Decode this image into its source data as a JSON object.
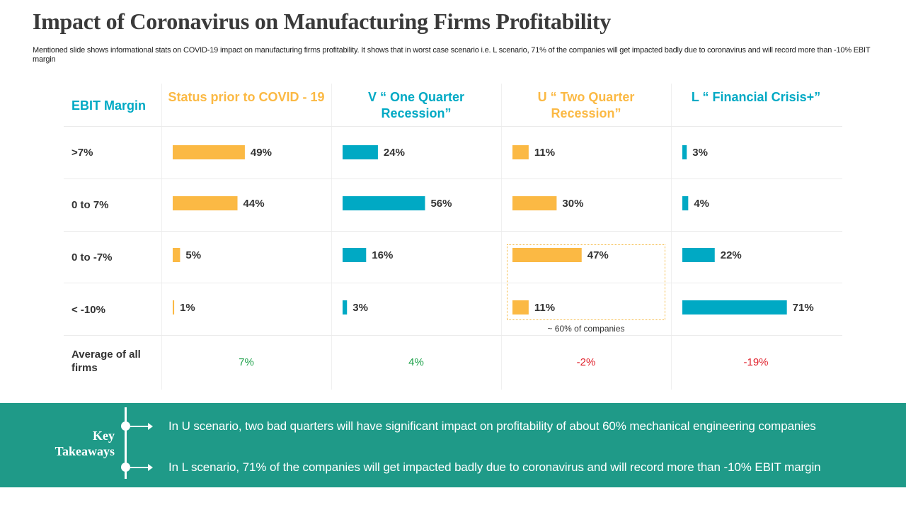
{
  "header": {
    "title": "Impact of Coronavirus on Manufacturing Firms Profitability",
    "subtitle": "Mentioned slide shows informational stats on COVID-19 impact on manufacturing firms profitability. It shows that in worst case scenario i.e. L scenario, 71% of the companies will get impacted badly due to coronavirus and will record more than -10% EBIT margin"
  },
  "colors": {
    "gold": "#fbb944",
    "teal": "#00a9c4",
    "green": "#1ea14a",
    "red": "#e0202b",
    "banner": "#1f9a88"
  },
  "chart_data": {
    "type": "table",
    "title": "Impact of Coronavirus on Manufacturing Firms Profitability",
    "row_header": "EBIT Margin",
    "rows": [
      ">7%",
      "0 to 7%",
      "0 to -7%",
      "< -10%"
    ],
    "series": [
      {
        "name": "Status prior to COVID - 19",
        "values": [
          49,
          44,
          5,
          1
        ],
        "labels": [
          "49%",
          "44%",
          "5%",
          "1%"
        ],
        "average": "7%"
      },
      {
        "name": "V “ One Quarter Recession”",
        "values": [
          24,
          56,
          16,
          3
        ],
        "labels": [
          "24%",
          "56%",
          "16%",
          "3%"
        ],
        "average": "4%"
      },
      {
        "name": "U “ Two Quarter Recession”",
        "values": [
          11,
          30,
          47,
          11
        ],
        "labels": [
          "11%",
          "30%",
          "47%",
          "11%"
        ],
        "average": "-2%"
      },
      {
        "name": "L “ Financial Crisis+”",
        "values": [
          3,
          4,
          22,
          71
        ],
        "labels": [
          "3%",
          "4%",
          "22%",
          "71%"
        ],
        "average": "-19%"
      }
    ],
    "average_row_label": "Average of all firms",
    "annotation": "~ 60%  of companies"
  },
  "takeaways": {
    "title": "Key Takeaways",
    "items": [
      "In U scenario, two bad quarters will have significant impact on profitability of about 60% mechanical engineering companies",
      "In L scenario, 71% of the companies will get impacted badly due to coronavirus and will record more than -10% EBIT margin"
    ]
  }
}
